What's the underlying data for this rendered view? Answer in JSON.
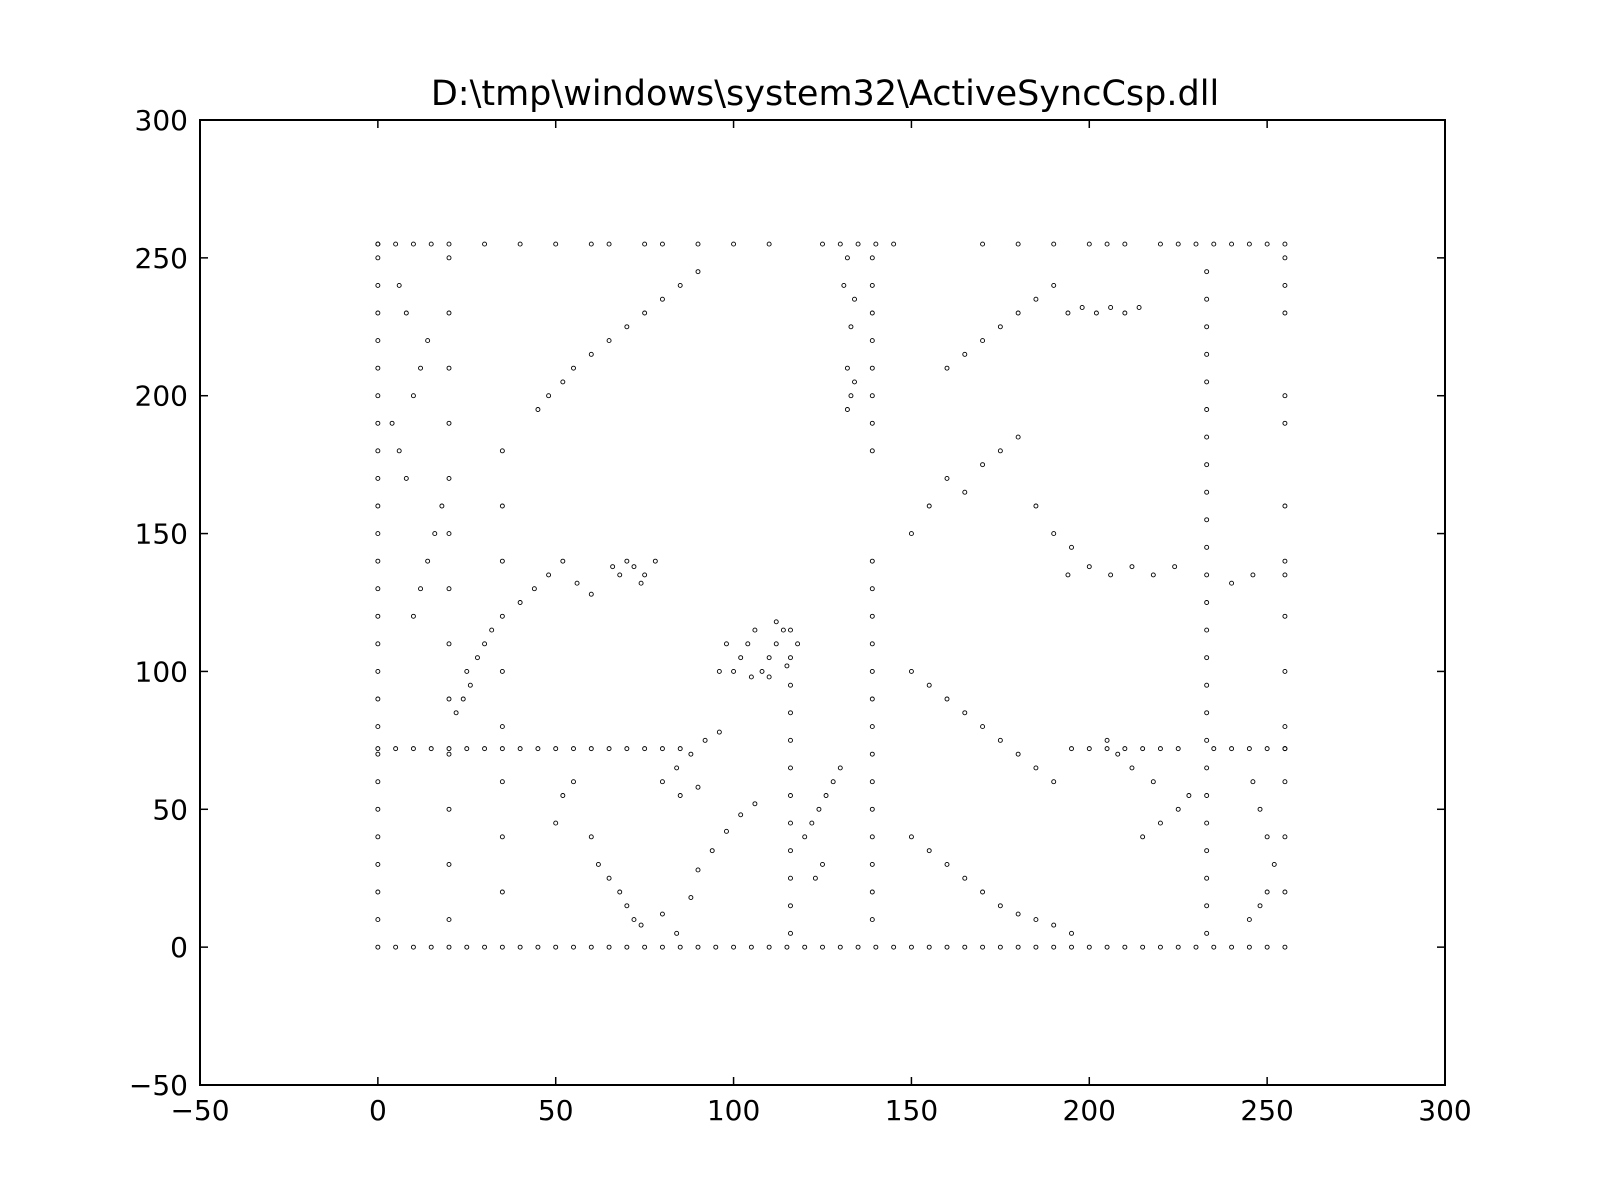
{
  "chart_data": {
    "type": "scatter",
    "title": "D:\\tmp\\windows\\system32\\ActiveSyncCsp.dll",
    "xlabel": "",
    "ylabel": "",
    "xlim": [
      -50,
      300
    ],
    "ylim": [
      -50,
      300
    ],
    "x_ticks": [
      "−50",
      "0",
      "50",
      "100",
      "150",
      "200",
      "250",
      "300"
    ],
    "y_ticks": [
      "−50",
      "0",
      "50",
      "100",
      "150",
      "200",
      "250",
      "300"
    ],
    "x_tick_values": [
      -50,
      0,
      50,
      100,
      150,
      200,
      250,
      300
    ],
    "y_tick_values": [
      -50,
      0,
      50,
      100,
      150,
      200,
      250,
      300
    ],
    "grid": false,
    "marker": "small hollow circle",
    "point_color": "#000000",
    "points_note_free": true,
    "points": [
      [
        0,
        0
      ],
      [
        5,
        0
      ],
      [
        10,
        0
      ],
      [
        15,
        0
      ],
      [
        20,
        0
      ],
      [
        25,
        0
      ],
      [
        30,
        0
      ],
      [
        35,
        0
      ],
      [
        40,
        0
      ],
      [
        45,
        0
      ],
      [
        50,
        0
      ],
      [
        55,
        0
      ],
      [
        60,
        0
      ],
      [
        65,
        0
      ],
      [
        70,
        0
      ],
      [
        75,
        0
      ],
      [
        80,
        0
      ],
      [
        85,
        0
      ],
      [
        90,
        0
      ],
      [
        95,
        0
      ],
      [
        100,
        0
      ],
      [
        105,
        0
      ],
      [
        110,
        0
      ],
      [
        115,
        0
      ],
      [
        120,
        0
      ],
      [
        125,
        0
      ],
      [
        130,
        0
      ],
      [
        135,
        0
      ],
      [
        140,
        0
      ],
      [
        145,
        0
      ],
      [
        150,
        0
      ],
      [
        155,
        0
      ],
      [
        160,
        0
      ],
      [
        165,
        0
      ],
      [
        170,
        0
      ],
      [
        175,
        0
      ],
      [
        180,
        0
      ],
      [
        185,
        0
      ],
      [
        190,
        0
      ],
      [
        195,
        0
      ],
      [
        200,
        0
      ],
      [
        205,
        0
      ],
      [
        210,
        0
      ],
      [
        215,
        0
      ],
      [
        220,
        0
      ],
      [
        225,
        0
      ],
      [
        230,
        0
      ],
      [
        235,
        0
      ],
      [
        240,
        0
      ],
      [
        245,
        0
      ],
      [
        250,
        0
      ],
      [
        255,
        0
      ],
      [
        0,
        10
      ],
      [
        0,
        20
      ],
      [
        0,
        30
      ],
      [
        0,
        40
      ],
      [
        0,
        50
      ],
      [
        0,
        60
      ],
      [
        0,
        70
      ],
      [
        0,
        80
      ],
      [
        0,
        90
      ],
      [
        0,
        100
      ],
      [
        0,
        110
      ],
      [
        0,
        120
      ],
      [
        0,
        130
      ],
      [
        0,
        140
      ],
      [
        0,
        150
      ],
      [
        0,
        160
      ],
      [
        0,
        170
      ],
      [
        0,
        180
      ],
      [
        0,
        190
      ],
      [
        0,
        200
      ],
      [
        0,
        210
      ],
      [
        0,
        220
      ],
      [
        0,
        230
      ],
      [
        0,
        240
      ],
      [
        0,
        250
      ],
      [
        0,
        255
      ],
      [
        0,
        72
      ],
      [
        5,
        72
      ],
      [
        10,
        72
      ],
      [
        15,
        72
      ],
      [
        20,
        72
      ],
      [
        25,
        72
      ],
      [
        30,
        72
      ],
      [
        35,
        72
      ],
      [
        40,
        72
      ],
      [
        45,
        72
      ],
      [
        50,
        72
      ],
      [
        55,
        72
      ],
      [
        60,
        72
      ],
      [
        65,
        72
      ],
      [
        70,
        72
      ],
      [
        75,
        72
      ],
      [
        80,
        72
      ],
      [
        85,
        72
      ],
      [
        195,
        72
      ],
      [
        200,
        72
      ],
      [
        205,
        72
      ],
      [
        210,
        72
      ],
      [
        215,
        72
      ],
      [
        220,
        72
      ],
      [
        225,
        72
      ],
      [
        235,
        72
      ],
      [
        240,
        72
      ],
      [
        245,
        72
      ],
      [
        250,
        72
      ],
      [
        255,
        72
      ],
      [
        0,
        255
      ],
      [
        5,
        255
      ],
      [
        10,
        255
      ],
      [
        15,
        255
      ],
      [
        20,
        255
      ],
      [
        30,
        255
      ],
      [
        40,
        255
      ],
      [
        50,
        255
      ],
      [
        60,
        255
      ],
      [
        65,
        255
      ],
      [
        75,
        255
      ],
      [
        80,
        255
      ],
      [
        90,
        255
      ],
      [
        100,
        255
      ],
      [
        110,
        255
      ],
      [
        125,
        255
      ],
      [
        130,
        255
      ],
      [
        135,
        255
      ],
      [
        140,
        255
      ],
      [
        145,
        255
      ],
      [
        170,
        255
      ],
      [
        180,
        255
      ],
      [
        190,
        255
      ],
      [
        200,
        255
      ],
      [
        205,
        255
      ],
      [
        210,
        255
      ],
      [
        220,
        255
      ],
      [
        225,
        255
      ],
      [
        230,
        255
      ],
      [
        235,
        255
      ],
      [
        240,
        255
      ],
      [
        245,
        255
      ],
      [
        250,
        255
      ],
      [
        255,
        255
      ],
      [
        139,
        10
      ],
      [
        139,
        20
      ],
      [
        139,
        30
      ],
      [
        139,
        40
      ],
      [
        139,
        50
      ],
      [
        139,
        60
      ],
      [
        139,
        70
      ],
      [
        139,
        80
      ],
      [
        139,
        90
      ],
      [
        139,
        100
      ],
      [
        139,
        110
      ],
      [
        139,
        120
      ],
      [
        139,
        130
      ],
      [
        139,
        140
      ],
      [
        139,
        180
      ],
      [
        139,
        190
      ],
      [
        139,
        200
      ],
      [
        139,
        210
      ],
      [
        139,
        220
      ],
      [
        139,
        230
      ],
      [
        139,
        240
      ],
      [
        139,
        250
      ],
      [
        116,
        5
      ],
      [
        116,
        15
      ],
      [
        116,
        25
      ],
      [
        116,
        35
      ],
      [
        116,
        45
      ],
      [
        116,
        55
      ],
      [
        116,
        65
      ],
      [
        116,
        75
      ],
      [
        116,
        85
      ],
      [
        116,
        95
      ],
      [
        116,
        105
      ],
      [
        116,
        115
      ],
      [
        233,
        5
      ],
      [
        233,
        15
      ],
      [
        233,
        25
      ],
      [
        233,
        35
      ],
      [
        233,
        45
      ],
      [
        233,
        55
      ],
      [
        233,
        65
      ],
      [
        233,
        75
      ],
      [
        233,
        85
      ],
      [
        233,
        95
      ],
      [
        233,
        105
      ],
      [
        233,
        115
      ],
      [
        233,
        125
      ],
      [
        233,
        135
      ],
      [
        233,
        145
      ],
      [
        233,
        155
      ],
      [
        233,
        165
      ],
      [
        233,
        175
      ],
      [
        233,
        185
      ],
      [
        233,
        195
      ],
      [
        233,
        205
      ],
      [
        233,
        215
      ],
      [
        233,
        225
      ],
      [
        233,
        235
      ],
      [
        233,
        245
      ],
      [
        255,
        20
      ],
      [
        255,
        40
      ],
      [
        255,
        60
      ],
      [
        255,
        72
      ],
      [
        255,
        80
      ],
      [
        255,
        100
      ],
      [
        255,
        120
      ],
      [
        255,
        135
      ],
      [
        255,
        140
      ],
      [
        255,
        160
      ],
      [
        255,
        190
      ],
      [
        255,
        200
      ],
      [
        255,
        230
      ],
      [
        255,
        240
      ],
      [
        255,
        250
      ],
      [
        20,
        10
      ],
      [
        20,
        30
      ],
      [
        20,
        50
      ],
      [
        20,
        70
      ],
      [
        20,
        90
      ],
      [
        20,
        110
      ],
      [
        20,
        130
      ],
      [
        20,
        150
      ],
      [
        20,
        170
      ],
      [
        20,
        190
      ],
      [
        20,
        210
      ],
      [
        20,
        230
      ],
      [
        20,
        250
      ],
      [
        100,
        100
      ],
      [
        102,
        105
      ],
      [
        104,
        110
      ],
      [
        106,
        115
      ],
      [
        108,
        100
      ],
      [
        110,
        105
      ],
      [
        112,
        110
      ],
      [
        114,
        115
      ],
      [
        98,
        110
      ],
      [
        96,
        100
      ],
      [
        105,
        98
      ],
      [
        110,
        98
      ],
      [
        115,
        102
      ],
      [
        118,
        110
      ],
      [
        112,
        118
      ],
      [
        68,
        135
      ],
      [
        70,
        140
      ],
      [
        72,
        138
      ],
      [
        75,
        135
      ],
      [
        78,
        140
      ],
      [
        66,
        138
      ],
      [
        74,
        132
      ],
      [
        132,
        195
      ],
      [
        133,
        200
      ],
      [
        134,
        205
      ],
      [
        132,
        210
      ],
      [
        133,
        225
      ],
      [
        134,
        235
      ],
      [
        131,
        240
      ],
      [
        132,
        250
      ],
      [
        194,
        230
      ],
      [
        198,
        232
      ],
      [
        202,
        230
      ],
      [
        206,
        232
      ],
      [
        210,
        230
      ],
      [
        214,
        232
      ],
      [
        194,
        135
      ],
      [
        200,
        138
      ],
      [
        206,
        135
      ],
      [
        212,
        138
      ],
      [
        218,
        135
      ],
      [
        224,
        138
      ],
      [
        240,
        132
      ],
      [
        246,
        135
      ],
      [
        35,
        20
      ],
      [
        35,
        40
      ],
      [
        35,
        60
      ],
      [
        35,
        80
      ],
      [
        35,
        100
      ],
      [
        35,
        120
      ],
      [
        35,
        140
      ],
      [
        35,
        160
      ],
      [
        35,
        180
      ],
      [
        50,
        45
      ],
      [
        52,
        55
      ],
      [
        55,
        60
      ],
      [
        60,
        40
      ],
      [
        62,
        30
      ],
      [
        65,
        25
      ],
      [
        68,
        20
      ],
      [
        70,
        15
      ],
      [
        72,
        10
      ],
      [
        74,
        8
      ],
      [
        80,
        12
      ],
      [
        84,
        5
      ],
      [
        88,
        18
      ],
      [
        90,
        28
      ],
      [
        94,
        35
      ],
      [
        98,
        42
      ],
      [
        102,
        48
      ],
      [
        106,
        52
      ],
      [
        45,
        195
      ],
      [
        48,
        200
      ],
      [
        52,
        205
      ],
      [
        55,
        210
      ],
      [
        60,
        215
      ],
      [
        65,
        220
      ],
      [
        70,
        225
      ],
      [
        75,
        230
      ],
      [
        80,
        235
      ],
      [
        85,
        240
      ],
      [
        90,
        245
      ],
      [
        150,
        150
      ],
      [
        155,
        160
      ],
      [
        160,
        170
      ],
      [
        165,
        165
      ],
      [
        170,
        175
      ],
      [
        175,
        180
      ],
      [
        180,
        185
      ],
      [
        185,
        160
      ],
      [
        190,
        150
      ],
      [
        195,
        145
      ],
      [
        150,
        100
      ],
      [
        155,
        95
      ],
      [
        160,
        90
      ],
      [
        165,
        85
      ],
      [
        170,
        80
      ],
      [
        175,
        75
      ],
      [
        180,
        70
      ],
      [
        185,
        65
      ],
      [
        190,
        60
      ],
      [
        150,
        40
      ],
      [
        155,
        35
      ],
      [
        160,
        30
      ],
      [
        165,
        25
      ],
      [
        170,
        20
      ],
      [
        175,
        15
      ],
      [
        180,
        12
      ],
      [
        185,
        10
      ],
      [
        190,
        8
      ],
      [
        195,
        5
      ],
      [
        215,
        40
      ],
      [
        220,
        45
      ],
      [
        225,
        50
      ],
      [
        228,
        55
      ],
      [
        218,
        60
      ],
      [
        212,
        65
      ],
      [
        208,
        70
      ],
      [
        205,
        75
      ],
      [
        245,
        10
      ],
      [
        248,
        15
      ],
      [
        250,
        20
      ],
      [
        252,
        30
      ],
      [
        250,
        40
      ],
      [
        248,
        50
      ],
      [
        246,
        60
      ],
      [
        10,
        120
      ],
      [
        12,
        130
      ],
      [
        14,
        140
      ],
      [
        16,
        150
      ],
      [
        18,
        160
      ],
      [
        8,
        170
      ],
      [
        6,
        180
      ],
      [
        4,
        190
      ],
      [
        10,
        200
      ],
      [
        12,
        210
      ],
      [
        14,
        220
      ],
      [
        8,
        230
      ],
      [
        6,
        240
      ],
      [
        25,
        100
      ],
      [
        28,
        105
      ],
      [
        30,
        110
      ],
      [
        32,
        115
      ],
      [
        26,
        95
      ],
      [
        24,
        90
      ],
      [
        22,
        85
      ],
      [
        40,
        125
      ],
      [
        44,
        130
      ],
      [
        48,
        135
      ],
      [
        52,
        140
      ],
      [
        56,
        132
      ],
      [
        60,
        128
      ],
      [
        80,
        60
      ],
      [
        84,
        65
      ],
      [
        88,
        70
      ],
      [
        92,
        75
      ],
      [
        96,
        78
      ],
      [
        90,
        58
      ],
      [
        85,
        55
      ],
      [
        120,
        40
      ],
      [
        122,
        45
      ],
      [
        124,
        50
      ],
      [
        126,
        55
      ],
      [
        128,
        60
      ],
      [
        130,
        65
      ],
      [
        125,
        30
      ],
      [
        123,
        25
      ],
      [
        160,
        210
      ],
      [
        165,
        215
      ],
      [
        170,
        220
      ],
      [
        175,
        225
      ],
      [
        180,
        230
      ],
      [
        185,
        235
      ],
      [
        190,
        240
      ]
    ]
  }
}
